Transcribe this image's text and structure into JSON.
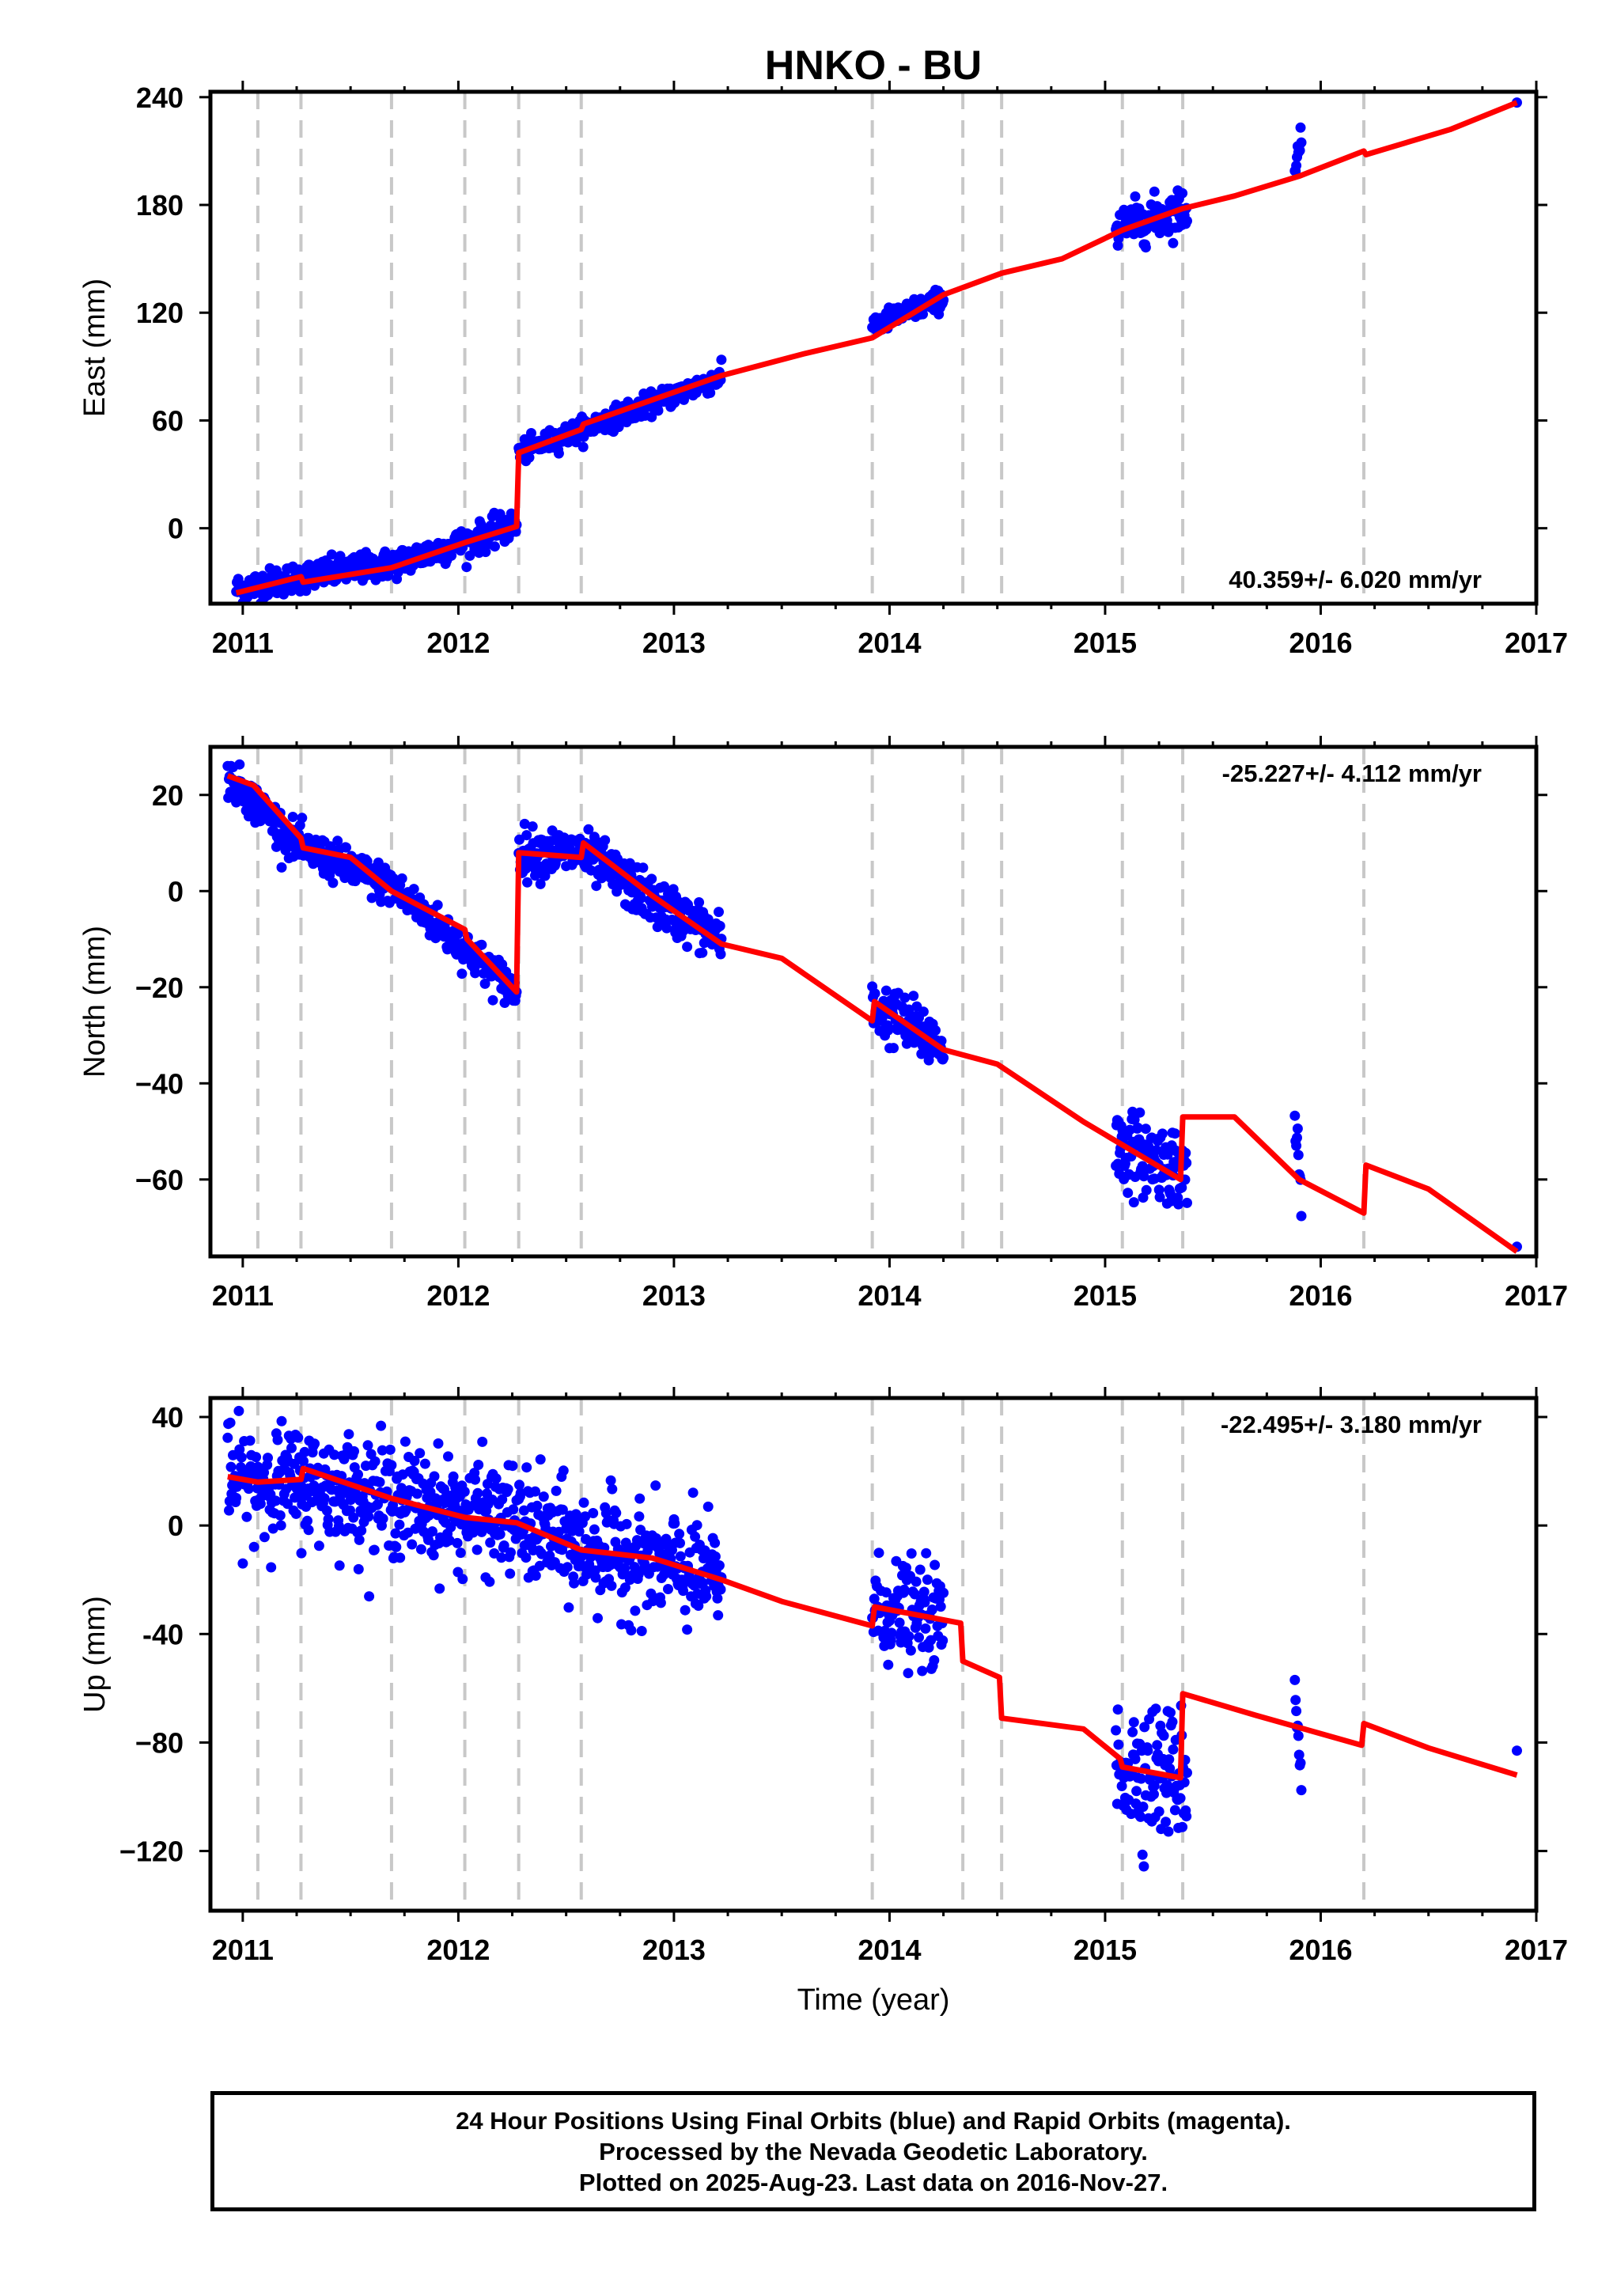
{
  "chart_data": {
    "type": "scatter",
    "title": "HNKO - BU",
    "xlabel": "Time (year)",
    "xlim": [
      2010.85,
      2017.0
    ],
    "xticks": [
      2011,
      2012,
      2013,
      2014,
      2015,
      2016,
      2017
    ],
    "xtick_labels": [
      "2011",
      "2012",
      "2013",
      "2014",
      "2015",
      "2016",
      "2017"
    ],
    "event_lines": [
      2011.07,
      2011.27,
      2011.69,
      2012.03,
      2012.28,
      2012.57,
      2013.92,
      2014.34,
      2014.52,
      2015.08,
      2015.36,
      2016.2
    ],
    "colors": {
      "data_final": "#0000ff",
      "model": "#ff0000",
      "event_lines": "#c8c8c8"
    },
    "panels": [
      {
        "name": "east",
        "ylabel": "East (mm)",
        "ylim": [
          -42,
          243
        ],
        "yticks": [
          240,
          180,
          120,
          60,
          0
        ],
        "ytick_labels": [
          "240",
          "180",
          "120",
          "60",
          "0"
        ],
        "rate_text": "40.359+/- 6.020 mm/yr",
        "rate_position": "bottom-right",
        "data_segments": [
          {
            "x0": 2010.97,
            "x1": 2012.27,
            "y": [
              [
                2010.97,
                -34
              ],
              [
                2011.27,
                -27
              ],
              [
                2011.69,
                -20
              ],
              [
                2012.03,
                -8
              ],
              [
                2012.27,
                2
              ]
            ],
            "spread": 4
          },
          {
            "x0": 2012.28,
            "x1": 2013.22,
            "y": [
              [
                2012.28,
                42
              ],
              [
                2012.57,
                55
              ],
              [
                2013.22,
                84
              ]
            ],
            "spread": 3
          },
          {
            "x0": 2013.92,
            "x1": 2014.25,
            "y": [
              [
                2013.92,
                113
              ],
              [
                2014.25,
                128
              ]
            ],
            "spread": 3
          },
          {
            "x0": 2015.05,
            "x1": 2015.38,
            "y": [
              [
                2015.05,
                167
              ],
              [
                2015.38,
                178
              ]
            ],
            "spread": 6
          },
          {
            "x0": 2015.88,
            "x1": 2015.91,
            "y": [
              [
                2015.88,
                196
              ],
              [
                2015.91,
                222
              ]
            ],
            "spread": 4
          },
          {
            "x0": 2016.91,
            "x1": 2016.91,
            "y": [
              [
                2016.91,
                237
              ],
              [
                2016.91,
                237
              ]
            ],
            "spread": 0
          }
        ],
        "model": [
          [
            2010.97,
            -36
          ],
          [
            2011.27,
            -27
          ],
          [
            2011.28,
            -30
          ],
          [
            2011.69,
            -22
          ],
          [
            2012.03,
            -8
          ],
          [
            2012.27,
            1
          ],
          [
            2012.28,
            42
          ],
          [
            2012.57,
            55
          ],
          [
            2012.58,
            58
          ],
          [
            2013.22,
            85
          ],
          [
            2013.6,
            97
          ],
          [
            2013.92,
            106
          ],
          [
            2014.25,
            130
          ],
          [
            2014.52,
            142
          ],
          [
            2014.8,
            150
          ],
          [
            2015.08,
            166
          ],
          [
            2015.36,
            178
          ],
          [
            2015.6,
            185
          ],
          [
            2015.9,
            196
          ],
          [
            2016.2,
            210
          ],
          [
            2016.21,
            208
          ],
          [
            2016.6,
            222
          ],
          [
            2016.91,
            237
          ]
        ]
      },
      {
        "name": "north",
        "ylabel": "North (mm)",
        "ylim": [
          -76,
          30
        ],
        "yticks": [
          20,
          0,
          -20,
          -40,
          -60
        ],
        "ytick_labels": [
          "20",
          "0",
          "−20",
          "−40",
          "−60"
        ],
        "rate_text": "-25.227+/- 4.112 mm/yr",
        "rate_position": "top-right",
        "data_segments": [
          {
            "x0": 2010.93,
            "x1": 2012.27,
            "y": [
              [
                2010.93,
                24
              ],
              [
                2011.27,
                9
              ],
              [
                2011.69,
                1
              ],
              [
                2012.03,
                -12
              ],
              [
                2012.27,
                -21
              ]
            ],
            "spread": 2
          },
          {
            "x0": 2012.28,
            "x1": 2013.22,
            "y": [
              [
                2012.28,
                8
              ],
              [
                2012.57,
                8
              ],
              [
                2012.9,
                -2
              ],
              [
                2013.22,
                -10
              ]
            ],
            "spread": 2.5
          },
          {
            "x0": 2013.92,
            "x1": 2014.25,
            "y": [
              [
                2013.92,
                -24
              ],
              [
                2014.25,
                -32
              ]
            ],
            "spread": 3
          },
          {
            "x0": 2015.05,
            "x1": 2015.38,
            "y": [
              [
                2015.05,
                -53
              ],
              [
                2015.38,
                -58
              ]
            ],
            "spread": 4
          },
          {
            "x0": 2015.88,
            "x1": 2015.91,
            "y": [
              [
                2015.88,
                -48
              ],
              [
                2015.91,
                -62
              ]
            ],
            "spread": 3
          },
          {
            "x0": 2016.91,
            "x1": 2016.91,
            "y": [
              [
                2016.91,
                -74
              ],
              [
                2016.91,
                -74
              ]
            ],
            "spread": 0
          }
        ],
        "model": [
          [
            2010.93,
            24
          ],
          [
            2011.05,
            22
          ],
          [
            2011.27,
            11
          ],
          [
            2011.28,
            9
          ],
          [
            2011.5,
            7
          ],
          [
            2011.69,
            0
          ],
          [
            2012.03,
            -8
          ],
          [
            2012.04,
            -10
          ],
          [
            2012.27,
            -21
          ],
          [
            2012.28,
            8
          ],
          [
            2012.57,
            7
          ],
          [
            2012.58,
            10
          ],
          [
            2012.9,
            -1
          ],
          [
            2013.22,
            -11
          ],
          [
            2013.5,
            -14
          ],
          [
            2013.92,
            -27
          ],
          [
            2013.93,
            -23
          ],
          [
            2014.25,
            -33
          ],
          [
            2014.5,
            -36
          ],
          [
            2014.9,
            -48
          ],
          [
            2015.35,
            -60
          ],
          [
            2015.36,
            -47
          ],
          [
            2015.6,
            -47
          ],
          [
            2015.9,
            -60
          ],
          [
            2016.2,
            -67
          ],
          [
            2016.21,
            -57
          ],
          [
            2016.5,
            -62
          ],
          [
            2016.91,
            -75
          ]
        ]
      },
      {
        "name": "up",
        "ylabel": "Up (mm)",
        "ylim": [
          -142,
          47
        ],
        "yticks": [
          40,
          0,
          -40,
          -80,
          -120
        ],
        "ytick_labels": [
          "40",
          "0",
          "-40",
          "−80",
          "−120"
        ],
        "rate_text": "-22.495+/- 3.180 mm/yr",
        "rate_position": "top-right",
        "data_segments": [
          {
            "x0": 2010.93,
            "x1": 2012.27,
            "y": [
              [
                2010.93,
                16
              ],
              [
                2011.27,
                16
              ],
              [
                2011.69,
                10
              ],
              [
                2012.03,
                4
              ],
              [
                2012.27,
                2
              ]
            ],
            "spread": 10
          },
          {
            "x0": 2012.28,
            "x1": 2013.22,
            "y": [
              [
                2012.28,
                0
              ],
              [
                2012.57,
                -8
              ],
              [
                2013.22,
                -20
              ]
            ],
            "spread": 10
          },
          {
            "x0": 2013.92,
            "x1": 2014.25,
            "y": [
              [
                2013.92,
                -30
              ],
              [
                2014.25,
                -35
              ]
            ],
            "spread": 9
          },
          {
            "x0": 2015.05,
            "x1": 2015.38,
            "y": [
              [
                2015.05,
                -88
              ],
              [
                2015.38,
                -92
              ]
            ],
            "spread": 12
          },
          {
            "x0": 2015.88,
            "x1": 2015.91,
            "y": [
              [
                2015.88,
                -60
              ],
              [
                2015.91,
                -92
              ]
            ],
            "spread": 4
          },
          {
            "x0": 2016.91,
            "x1": 2016.91,
            "y": [
              [
                2016.91,
                -83
              ],
              [
                2016.91,
                -83
              ]
            ],
            "spread": 0
          }
        ],
        "model": [
          [
            2010.93,
            18
          ],
          [
            2011.07,
            16
          ],
          [
            2011.27,
            17
          ],
          [
            2011.28,
            21
          ],
          [
            2011.69,
            10
          ],
          [
            2012.03,
            3
          ],
          [
            2012.27,
            1
          ],
          [
            2012.57,
            -9
          ],
          [
            2012.9,
            -12
          ],
          [
            2013.22,
            -20
          ],
          [
            2013.5,
            -28
          ],
          [
            2013.92,
            -37
          ],
          [
            2013.93,
            -30
          ],
          [
            2014.33,
            -36
          ],
          [
            2014.34,
            -50
          ],
          [
            2014.51,
            -56
          ],
          [
            2014.52,
            -71
          ],
          [
            2014.9,
            -75
          ],
          [
            2015.07,
            -86
          ],
          [
            2015.08,
            -89
          ],
          [
            2015.35,
            -93
          ],
          [
            2015.36,
            -62
          ],
          [
            2015.7,
            -70
          ],
          [
            2016.19,
            -81
          ],
          [
            2016.2,
            -73
          ],
          [
            2016.5,
            -82
          ],
          [
            2016.91,
            -92
          ]
        ]
      }
    ]
  },
  "footer": {
    "line1": "24 Hour Positions Using Final Orbits (blue) and Rapid Orbits (magenta).",
    "line2": "Processed by the Nevada Geodetic Laboratory.",
    "line3": "Plotted on 2025-Aug-23. Last data on 2016-Nov-27."
  }
}
